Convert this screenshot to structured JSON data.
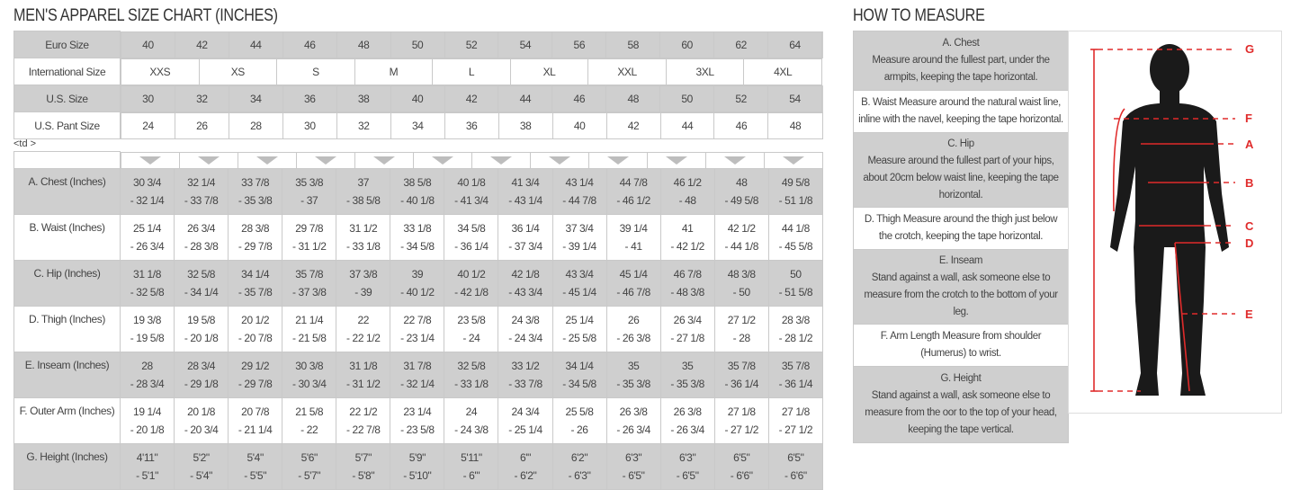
{
  "chart_title": "MEN'S APPAREL SIZE CHART (INCHES)",
  "measure_title": "HOW TO MEASURE",
  "stray_markup_text": "<td >",
  "size_rows": [
    {
      "label": "Euro Size",
      "values": [
        "40",
        "42",
        "44",
        "46",
        "48",
        "50",
        "52",
        "54",
        "56",
        "58",
        "60",
        "62",
        "64"
      ]
    },
    {
      "label": "International Size",
      "values": [
        "XXS",
        "XS",
        "S",
        "M",
        "L",
        "XL",
        "XXL",
        "3XL",
        "4XL"
      ]
    },
    {
      "label": "U.S. Size",
      "values": [
        "30",
        "32",
        "34",
        "36",
        "38",
        "40",
        "42",
        "44",
        "46",
        "48",
        "50",
        "52",
        "54"
      ]
    },
    {
      "label": "U.S. Pant Size",
      "values": [
        "24",
        "26",
        "28",
        "30",
        "32",
        "34",
        "36",
        "38",
        "40",
        "42",
        "44",
        "46",
        "48"
      ]
    }
  ],
  "arrow_count_icon": "triangle-down-icon",
  "measurement_rows": [
    {
      "label": "A. Chest (Inches)",
      "values": [
        [
          "30 3/4",
          "- 32 1/4"
        ],
        [
          "32 1/4",
          "- 33 7/8"
        ],
        [
          "33 7/8",
          "- 35 3/8"
        ],
        [
          "35 3/8",
          "- 37"
        ],
        [
          "37",
          "- 38 5/8"
        ],
        [
          "38 5/8",
          "- 40 1/8"
        ],
        [
          "40 1/8",
          "- 41 3/4"
        ],
        [
          "41 3/4",
          "- 43 1/4"
        ],
        [
          "43 1/4",
          "- 44 7/8"
        ],
        [
          "44 7/8",
          "- 46 1/2"
        ],
        [
          "46 1/2",
          "- 48"
        ],
        [
          "48",
          "- 49 5/8"
        ],
        [
          "49 5/8",
          "- 51 1/8"
        ]
      ]
    },
    {
      "label": "B. Waist (Inches)",
      "values": [
        [
          "25 1/4",
          "- 26 3/4"
        ],
        [
          "26 3/4",
          "- 28 3/8"
        ],
        [
          "28 3/8",
          "- 29 7/8"
        ],
        [
          "29 7/8",
          "- 31 1/2"
        ],
        [
          "31 1/2",
          "- 33 1/8"
        ],
        [
          "33 1/8",
          "- 34 5/8"
        ],
        [
          "34 5/8",
          "- 36 1/4"
        ],
        [
          "36 1/4",
          "- 37 3/4"
        ],
        [
          "37 3/4",
          "- 39 1/4"
        ],
        [
          "39 1/4",
          "- 41"
        ],
        [
          "41",
          "- 42 1/2"
        ],
        [
          "42 1/2",
          "- 44 1/8"
        ],
        [
          "44 1/8",
          "- 45 5/8"
        ]
      ]
    },
    {
      "label": "C. Hip (Inches)",
      "values": [
        [
          "31 1/8",
          "- 32 5/8"
        ],
        [
          "32 5/8",
          "- 34 1/4"
        ],
        [
          "34 1/4",
          "- 35 7/8"
        ],
        [
          "35 7/8",
          "- 37 3/8"
        ],
        [
          "37 3/8",
          "- 39"
        ],
        [
          "39",
          "- 40 1/2"
        ],
        [
          "40 1/2",
          "- 42 1/8"
        ],
        [
          "42 1/8",
          "- 43 3/4"
        ],
        [
          "43 3/4",
          "- 45 1/4"
        ],
        [
          "45 1/4",
          "- 46 7/8"
        ],
        [
          "46 7/8",
          "- 48 3/8"
        ],
        [
          "48 3/8",
          "- 50"
        ],
        [
          "50",
          "- 51 5/8"
        ]
      ]
    },
    {
      "label": "D. Thigh (Inches)",
      "values": [
        [
          "19 3/8",
          "- 19 5/8"
        ],
        [
          "19 5/8",
          "- 20 1/8"
        ],
        [
          "20 1/2",
          "- 20 7/8"
        ],
        [
          "21 1/4",
          "- 21 5/8"
        ],
        [
          "22",
          "- 22 1/2"
        ],
        [
          "22 7/8",
          "- 23 1/4"
        ],
        [
          "23 5/8",
          "- 24"
        ],
        [
          "24 3/8",
          "- 24 3/4"
        ],
        [
          "25 1/4",
          "- 25 5/8"
        ],
        [
          "26",
          "- 26 3/8"
        ],
        [
          "26 3/4",
          "- 27 1/8"
        ],
        [
          "27 1/2",
          "- 28"
        ],
        [
          "28 3/8",
          "- 28 1/2"
        ]
      ]
    },
    {
      "label": "E. Inseam (Inches)",
      "values": [
        [
          "28",
          "- 28 3/4"
        ],
        [
          "28 3/4",
          "- 29 1/8"
        ],
        [
          "29 1/2",
          "- 29 7/8"
        ],
        [
          "30 3/8",
          "- 30 3/4"
        ],
        [
          "31 1/8",
          "- 31 1/2"
        ],
        [
          "31 7/8",
          "- 32 1/4"
        ],
        [
          "32 5/8",
          "- 33 1/8"
        ],
        [
          "33 1/2",
          "- 33 7/8"
        ],
        [
          "34 1/4",
          "- 34 5/8"
        ],
        [
          "35",
          "- 35 3/8"
        ],
        [
          "35",
          "- 35 3/8"
        ],
        [
          "35 7/8",
          "- 36 1/4"
        ],
        [
          "35 7/8",
          "- 36 1/4"
        ]
      ]
    },
    {
      "label": "F. Outer Arm (Inches)",
      "values": [
        [
          "19 1/4",
          "- 20 1/8"
        ],
        [
          "20 1/8",
          "- 20 3/4"
        ],
        [
          "20 7/8",
          "- 21 1/4"
        ],
        [
          "21 5/8",
          "- 22"
        ],
        [
          "22 1/2",
          "- 22 7/8"
        ],
        [
          "23 1/4",
          "- 23 5/8"
        ],
        [
          "24",
          "- 24 3/8"
        ],
        [
          "24 3/4",
          "- 25 1/4"
        ],
        [
          "25 5/8",
          "- 26"
        ],
        [
          "26 3/8",
          "- 26 3/4"
        ],
        [
          "26 3/8",
          "- 26 3/4"
        ],
        [
          "27 1/8",
          "- 27 1/2"
        ],
        [
          "27 1/8",
          "- 27 1/2"
        ]
      ]
    },
    {
      "label": "G. Height (Inches)",
      "values": [
        [
          "4'11\"",
          "- 5'1\""
        ],
        [
          "5'2\"",
          "- 5'4\""
        ],
        [
          "5'4\"",
          "- 5'5\""
        ],
        [
          "5'6\"",
          "- 5'7\""
        ],
        [
          "5'7\"",
          "- 5'8\""
        ],
        [
          "5'9\"",
          "- 5'10\""
        ],
        [
          "5'11\"",
          "- 6'\""
        ],
        [
          "6'\"",
          "- 6'2\""
        ],
        [
          "6'2\"",
          "- 6'3\""
        ],
        [
          "6'3\"",
          "- 6'5\""
        ],
        [
          "6'3\"",
          "- 6'5\""
        ],
        [
          "6'5\"",
          "- 6'6\""
        ],
        [
          "6'5\"",
          "- 6'6\""
        ]
      ]
    }
  ],
  "how_to_measure": [
    {
      "lines": [
        "A. Chest",
        "Measure around the fullest part, under the armpits, keeping the tape horizontal."
      ]
    },
    {
      "lines": [
        "B. Waist Measure around the natural waist line, inline with the navel, keeping the tape horizontal."
      ]
    },
    {
      "lines": [
        "C. Hip",
        "Measure around the fullest part of your hips, about 20cm below waist line, keeping the tape horizontal."
      ]
    },
    {
      "lines": [
        "D. Thigh Measure around the thigh just below the crotch, keeping the tape horizontal."
      ]
    },
    {
      "lines": [
        "E. Inseam",
        "Stand against a wall, ask someone else to measure from the crotch to the bottom of your leg."
      ]
    },
    {
      "lines": [
        "F. Arm Length Measure from shoulder (Humerus) to wrist."
      ]
    },
    {
      "lines": [
        "G. Height",
        "Stand against a wall, ask someone else to measure from the oor to the top of your head, keeping the tape vertical."
      ]
    }
  ],
  "figure_labels": [
    "G",
    "F",
    "A",
    "B",
    "C",
    "D",
    "E"
  ],
  "colors": {
    "row_gray": "#cfcfcf",
    "measure_red": "#e02b2b",
    "silhouette": "#1a1a1a"
  }
}
